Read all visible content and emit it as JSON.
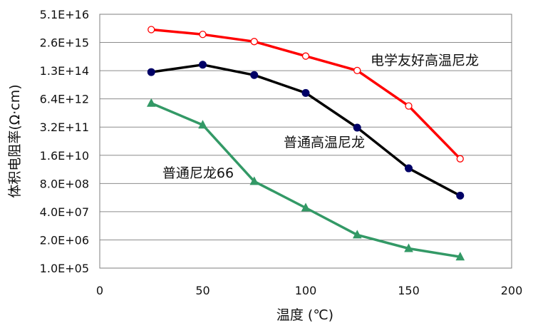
{
  "chart_data": {
    "type": "line",
    "xlabel": "温度 (℃)",
    "ylabel": "体积电阻率(Ω·cm)",
    "xlim": [
      0,
      200
    ],
    "x_ticks": [
      "0",
      "50",
      "100",
      "150",
      "200"
    ],
    "y_scale": "log",
    "ylim": [
      100000,
      5.1e+16
    ],
    "y_ticks": [
      "1.0E+05",
      "2.0E+06",
      "4.0E+07",
      "8.0E+08",
      "1.6E+10",
      "3.2E+11",
      "6.4E+12",
      "1.3E+14",
      "2.6E+15",
      "5.1E+16"
    ],
    "grid": true,
    "legend": "inline labels",
    "series": [
      {
        "name": "电学友好高温尼龙",
        "color": "#ff0000",
        "marker": "open-circle",
        "x": [
          25,
          50,
          75,
          100,
          125,
          150,
          175
        ],
        "y": [
          1e+16,
          6000000000000000.0,
          2800000000000000.0,
          600000000000000.0,
          130000000000000.0,
          3000000000000.0,
          11000000000.0
        ]
      },
      {
        "name": "普通高温尼龙",
        "color": "#000000",
        "marker": "filled-circle",
        "x": [
          25,
          50,
          75,
          100,
          125,
          150,
          175
        ],
        "y": [
          110000000000000.0,
          240000000000000.0,
          80000000000000.0,
          12000000000000.0,
          300000000000.0,
          4000000000.0,
          220000000.0
        ]
      },
      {
        "name": "普通尼龙66",
        "color": "#339966",
        "marker": "filled-triangle",
        "x": [
          25,
          50,
          75,
          100,
          125,
          150,
          175
        ],
        "y": [
          4000000000000.0,
          400000000000.0,
          1000000000.0,
          60000000.0,
          3400000.0,
          800000.0,
          330000.0
        ]
      }
    ]
  }
}
